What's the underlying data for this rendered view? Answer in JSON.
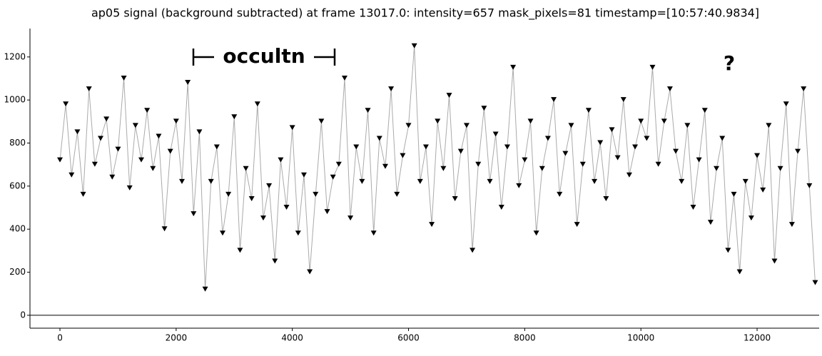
{
  "chart_data": {
    "type": "line",
    "title": "ap05 signal (background subtracted) at frame 13017.0: intensity=657 mask_pixels=81 timestamp=[10:57:40.9834]",
    "annotations": [
      "occultn",
      "?"
    ],
    "x": [
      0,
      100,
      200,
      300,
      400,
      500,
      600,
      700,
      800,
      900,
      1000,
      1100,
      1200,
      1300,
      1400,
      1500,
      1600,
      1700,
      1800,
      1900,
      2000,
      2100,
      2200,
      2300,
      2400,
      2500,
      2600,
      2700,
      2800,
      2900,
      3000,
      3100,
      3200,
      3300,
      3400,
      3500,
      3600,
      3700,
      3800,
      3900,
      4000,
      4100,
      4200,
      4300,
      4400,
      4500,
      4600,
      4700,
      4800,
      4900,
      5000,
      5100,
      5200,
      5300,
      5400,
      5500,
      5600,
      5700,
      5800,
      5900,
      6000,
      6100,
      6200,
      6300,
      6400,
      6500,
      6600,
      6700,
      6800,
      6900,
      7000,
      7100,
      7200,
      7300,
      7400,
      7500,
      7600,
      7700,
      7800,
      7900,
      8000,
      8100,
      8200,
      8300,
      8400,
      8500,
      8600,
      8700,
      8800,
      8900,
      9000,
      9100,
      9200,
      9300,
      9400,
      9500,
      9600,
      9700,
      9800,
      9900,
      10000,
      10100,
      10200,
      10300,
      10400,
      10500,
      10600,
      10700,
      10800,
      10900,
      11000,
      11100,
      11200,
      11300,
      11400,
      11500,
      11600,
      11700,
      11800,
      11900,
      12000,
      12100,
      12200,
      12300,
      12400,
      12500,
      12600,
      12700,
      12800,
      12900,
      13000
    ],
    "series": [
      {
        "color": "#000000",
        "line_color": "#aaaaaa",
        "values": [
          720,
          980,
          650,
          850,
          560,
          1050,
          700,
          820,
          910,
          640,
          770,
          1100,
          590,
          880,
          720,
          950,
          680,
          830,
          400,
          760,
          900,
          620,
          1080,
          470,
          850,
          120,
          620,
          780,
          380,
          560,
          920,
          300,
          680,
          540,
          980,
          450,
          600,
          250,
          720,
          500,
          870,
          380,
          650,
          200,
          560,
          900,
          480,
          640,
          700,
          1100,
          450,
          780,
          620,
          950,
          380,
          820,
          690,
          1050,
          560,
          740,
          880,
          1250,
          620,
          780,
          420,
          900,
          680,
          1020,
          540,
          760,
          880,
          300,
          700,
          960,
          620,
          840,
          500,
          780,
          1150,
          600,
          720,
          900,
          380,
          680,
          820,
          1000,
          560,
          750,
          880,
          420,
          700,
          950,
          620,
          800,
          540,
          860,
          730,
          1000,
          650,
          780,
          900,
          820,
          1150,
          700,
          900,
          1050,
          760,
          620,
          880,
          500,
          720,
          950,
          430,
          680,
          820,
          300,
          560,
          200,
          620,
          450,
          740,
          580,
          880,
          250,
          680,
          980,
          420,
          760,
          1050,
          600,
          150
        ]
      }
    ],
    "xlim": [
      -516,
      13068
    ],
    "ylim": [
      -60,
      1332
    ],
    "xticks": [
      0,
      2000,
      4000,
      6000,
      8000,
      10000,
      12000
    ],
    "yticks": [
      0,
      200,
      400,
      600,
      800,
      1000,
      1200
    ],
    "grid": false
  }
}
